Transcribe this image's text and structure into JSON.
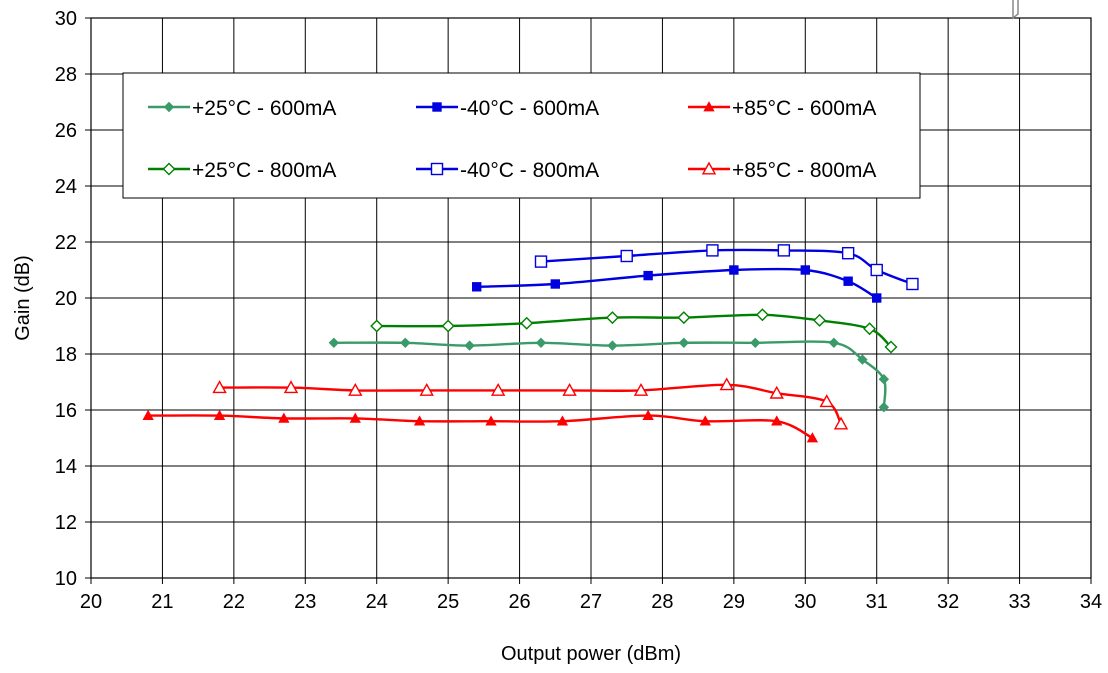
{
  "chart_data": {
    "type": "line",
    "title": "",
    "xlabel": "Output power (dBm)",
    "ylabel": "Gain (dB)",
    "xlim": [
      20,
      34
    ],
    "ylim": [
      10,
      30
    ],
    "xticks": [
      "20",
      "21",
      "22",
      "23",
      "24",
      "25",
      "26",
      "27",
      "28",
      "29",
      "30",
      "31",
      "32",
      "33",
      "34"
    ],
    "yticks": [
      "10",
      "12",
      "14",
      "16",
      "18",
      "20",
      "22",
      "24",
      "26",
      "28",
      "30"
    ],
    "grid": true,
    "legend_position": "top-left, inside plot",
    "series": [
      {
        "name": "+25°C - 600mA",
        "color": "#3A9A6A",
        "marker": "diamond-filled",
        "x": [
          23.4,
          24.4,
          25.3,
          26.3,
          27.3,
          28.3,
          29.3,
          30.4,
          30.8,
          31.1,
          31.1
        ],
        "y": [
          18.4,
          18.4,
          18.3,
          18.4,
          18.3,
          18.4,
          18.4,
          18.4,
          17.8,
          17.1,
          16.1
        ]
      },
      {
        "name": "-40°C - 600mA",
        "color": "#0000E0",
        "marker": "square-filled",
        "x": [
          25.4,
          26.5,
          27.8,
          29.0,
          30.0,
          30.6,
          31.0
        ],
        "y": [
          20.4,
          20.5,
          20.8,
          21.0,
          21.0,
          20.6,
          20.0
        ]
      },
      {
        "name": "+85°C - 600mA",
        "color": "#FF0000",
        "marker": "triangle-filled",
        "x": [
          20.8,
          21.8,
          22.7,
          23.7,
          24.6,
          25.6,
          26.6,
          27.8,
          28.6,
          29.6,
          30.1
        ],
        "y": [
          15.8,
          15.8,
          15.7,
          15.7,
          15.6,
          15.6,
          15.6,
          15.8,
          15.6,
          15.6,
          15.0
        ]
      },
      {
        "name": "+25°C - 800mA",
        "color": "#008000",
        "marker": "diamond-open",
        "x": [
          24.0,
          25.0,
          26.1,
          27.3,
          28.3,
          29.4,
          30.2,
          30.9,
          31.2
        ],
        "y": [
          19.0,
          19.0,
          19.1,
          19.3,
          19.3,
          19.4,
          19.2,
          18.9,
          18.25
        ]
      },
      {
        "name": "-40°C - 800mA",
        "color": "#0000E0",
        "marker": "square-open",
        "x": [
          26.3,
          27.5,
          28.7,
          29.7,
          30.6,
          31.0,
          31.5
        ],
        "y": [
          21.3,
          21.5,
          21.7,
          21.7,
          21.6,
          21.0,
          20.5
        ]
      },
      {
        "name": "+85°C - 800mA",
        "color": "#FF0000",
        "marker": "triangle-open",
        "x": [
          21.8,
          22.8,
          23.7,
          24.7,
          25.7,
          26.7,
          27.7,
          28.9,
          29.6,
          30.3,
          30.5
        ],
        "y": [
          16.8,
          16.8,
          16.7,
          16.7,
          16.7,
          16.7,
          16.7,
          16.9,
          16.6,
          16.3,
          15.5
        ]
      }
    ]
  }
}
